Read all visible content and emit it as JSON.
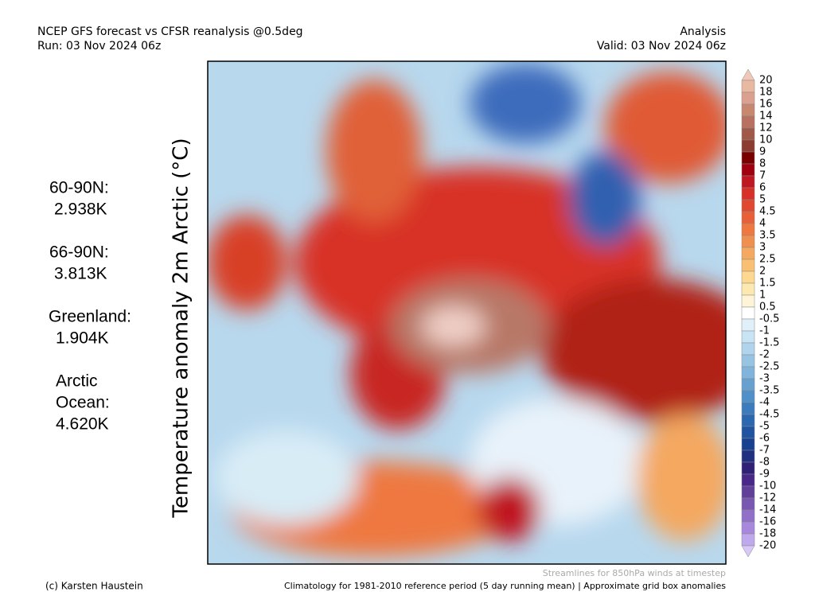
{
  "header": {
    "title": "NCEP GFS forecast vs CFSR reanalysis @0.5deg",
    "run": "Run: 03 Nov 2024 06z",
    "mode": "Analysis",
    "valid": "Valid: 03 Nov 2024 06z"
  },
  "side_label": "Temperature anomaly 2m Arctic (°C)",
  "stats": [
    {
      "lines": [
        "60-90N:",
        "2.938K"
      ]
    },
    {
      "lines": [
        "66-90N:",
        "3.813K"
      ]
    },
    {
      "lines": [
        "Greenland:",
        "1.904K"
      ]
    },
    {
      "lines": [
        "Arctic",
        "Ocean:",
        "4.620K"
      ]
    }
  ],
  "colorbar": {
    "levels": [
      20,
      18,
      16,
      14,
      12,
      10,
      9,
      8,
      7,
      6,
      5,
      4.5,
      4,
      3.5,
      3,
      2.5,
      2,
      1.5,
      1,
      0.5,
      -0.5,
      -1,
      -1.5,
      -2,
      -2.5,
      -3,
      -3.5,
      -4,
      -4.5,
      -5,
      -6,
      -7,
      -8,
      -9,
      -10,
      -12,
      -14,
      -16,
      -18,
      -20
    ],
    "colors": [
      "#f0c8b8",
      "#e8b8a0",
      "#dca090",
      "#c88870",
      "#b87060",
      "#a05848",
      "#8c3c30",
      "#7a0000",
      "#a00010",
      "#c01820",
      "#d83028",
      "#e04830",
      "#e86038",
      "#ee7840",
      "#f09050",
      "#f4a860",
      "#f8c070",
      "#fcd890",
      "#fde8b0",
      "#fff4d8",
      "#ffffff",
      "#e0f0fa",
      "#c8e4f4",
      "#b0d4ec",
      "#98c4e4",
      "#80b4dc",
      "#68a0d0",
      "#5090c8",
      "#3c7cbc",
      "#2c68b0",
      "#2054a0",
      "#184090",
      "#203080",
      "#302078",
      "#482888",
      "#604098",
      "#7858b0",
      "#9070c8",
      "#a888dc",
      "#c0a8ec",
      "#d8c8f8"
    ]
  },
  "footer": {
    "credit": "(c) Karsten Haustein",
    "streamlines": "Streamlines for 850hPa winds at timestep",
    "climatology": "Climatology for 1981-2010 reference period (5 day running mean) | Approximate grid box anomalies"
  }
}
